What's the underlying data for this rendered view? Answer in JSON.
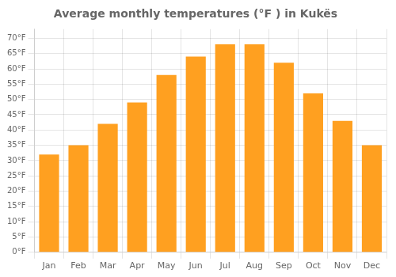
{
  "chart_data": {
    "type": "bar",
    "title": "Average monthly temperatures (°F ) in Kukës",
    "categories": [
      "Jan",
      "Feb",
      "Mar",
      "Apr",
      "May",
      "Jun",
      "Jul",
      "Aug",
      "Sep",
      "Oct",
      "Nov",
      "Dec"
    ],
    "values": [
      32,
      35,
      42,
      49,
      58,
      64,
      68,
      68,
      62,
      52,
      43,
      35
    ],
    "color": "#FFA020",
    "ylim": [
      0,
      73
    ],
    "yticks": [
      {
        "value": 0,
        "label": "0°F"
      },
      {
        "value": 5,
        "label": "5°F"
      },
      {
        "value": 10,
        "label": "10°F"
      },
      {
        "value": 15,
        "label": "15°F"
      },
      {
        "value": 20,
        "label": "20°F"
      },
      {
        "value": 25,
        "label": "25°F"
      },
      {
        "value": 30,
        "label": "30°F"
      },
      {
        "value": 35,
        "label": "35°F"
      },
      {
        "value": 40,
        "label": "40°F"
      },
      {
        "value": 45,
        "label": "45°F"
      },
      {
        "value": 50,
        "label": "50°F"
      },
      {
        "value": 55,
        "label": "55°F"
      },
      {
        "value": 60,
        "label": "60°F"
      },
      {
        "value": 65,
        "label": "65°F"
      },
      {
        "value": 70,
        "label": "70°F"
      }
    ],
    "grid": true
  }
}
